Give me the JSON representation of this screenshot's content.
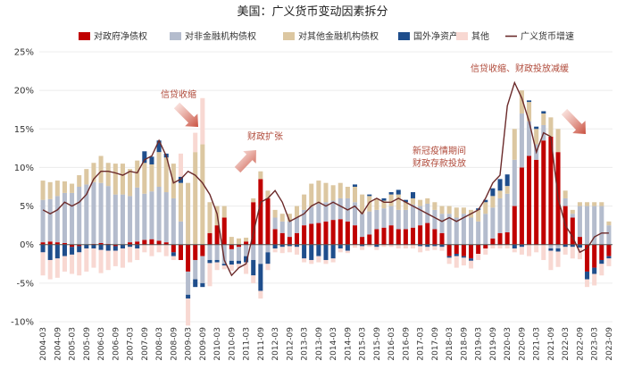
{
  "chart_data": {
    "type": "bar",
    "title": "美国：广义货币变动因素拆分",
    "x": [
      "2004-03",
      "2004-06",
      "2004-09",
      "2004-12",
      "2005-03",
      "2005-06",
      "2005-09",
      "2005-12",
      "2006-03",
      "2006-06",
      "2006-09",
      "2006-12",
      "2007-03",
      "2007-06",
      "2007-09",
      "2007-12",
      "2008-03",
      "2008-06",
      "2008-09",
      "2008-12",
      "2009-03",
      "2009-06",
      "2009-09",
      "2009-12",
      "2010-03",
      "2010-06",
      "2010-09",
      "2010-12",
      "2011-03",
      "2011-06",
      "2011-09",
      "2011-12",
      "2012-03",
      "2012-06",
      "2012-09",
      "2012-12",
      "2013-03",
      "2013-06",
      "2013-09",
      "2013-12",
      "2014-03",
      "2014-06",
      "2014-09",
      "2014-12",
      "2015-03",
      "2015-06",
      "2015-09",
      "2015-12",
      "2016-03",
      "2016-06",
      "2016-09",
      "2016-12",
      "2017-03",
      "2017-06",
      "2017-09",
      "2017-12",
      "2018-03",
      "2018-06",
      "2018-09",
      "2018-12",
      "2019-03",
      "2019-06",
      "2019-09",
      "2019-12",
      "2020-03",
      "2020-06",
      "2020-09",
      "2020-12",
      "2021-03",
      "2021-06",
      "2021-09",
      "2021-12",
      "2022-03",
      "2022-06",
      "2022-09",
      "2022-12",
      "2023-03",
      "2023-06",
      "2023-09"
    ],
    "x_tick_labels": [
      "2004-03",
      "2004-09",
      "2005-03",
      "2005-09",
      "2006-03",
      "2006-09",
      "2007-03",
      "2007-09",
      "2008-03",
      "2008-09",
      "2009-03",
      "2009-09",
      "2010-03",
      "2010-09",
      "2011-03",
      "2011-09",
      "2012-03",
      "2012-09",
      "2013-03",
      "2013-09",
      "2014-03",
      "2014-09",
      "2015-03",
      "2015-09",
      "2016-03",
      "2016-09",
      "2017-03",
      "2017-09",
      "2018-03",
      "2018-09",
      "2019-03",
      "2019-09",
      "2020-03",
      "2020-09",
      "2021-03",
      "2021-09",
      "2022-03",
      "2022-09",
      "2023-03",
      "2023-09"
    ],
    "y_ticks": [
      "-10%",
      "-5%",
      "0%",
      "5%",
      "10%",
      "15%",
      "20%",
      "25%"
    ],
    "ylim": [
      -10,
      25
    ],
    "series": [
      {
        "name": "对政府净债权",
        "type": "bar",
        "color": "#c00000",
        "values": [
          0.3,
          0.4,
          0.3,
          0.2,
          -0.3,
          -0.2,
          0.0,
          0.1,
          0.2,
          0.1,
          -0.2,
          0.0,
          0.3,
          0.4,
          0.6,
          0.7,
          0.5,
          0.3,
          -1.0,
          -2.0,
          -3.5,
          -2.0,
          -1.5,
          1.5,
          2.5,
          3.5,
          -0.6,
          -0.3,
          0.4,
          5.5,
          8.5,
          6.0,
          2.0,
          1.5,
          1.0,
          1.5,
          2.5,
          2.7,
          2.8,
          3.0,
          3.2,
          3.3,
          3.0,
          2.5,
          1.0,
          1.3,
          2.0,
          2.2,
          2.5,
          2.0,
          2.0,
          2.2,
          2.5,
          2.8,
          2.0,
          1.5,
          -1.5,
          -1.2,
          -1.5,
          -1.8,
          -1.2,
          -0.5,
          0.8,
          1.5,
          1.6,
          5.0,
          10.0,
          11.5,
          11.0,
          13.5,
          14.0,
          12.0,
          5.0,
          3.5,
          1.0,
          -3.5,
          -3.0,
          -2.0,
          -1.5
        ]
      },
      {
        "name": "对非金融机构债权",
        "type": "bar",
        "color": "#b4bccd",
        "values": [
          5.5,
          5.5,
          6.0,
          6.5,
          6.7,
          7.5,
          7.8,
          8.0,
          7.8,
          7.5,
          6.5,
          6.5,
          6.0,
          7.0,
          6.0,
          6.2,
          7.0,
          6.5,
          6.0,
          3.0,
          -3.0,
          -2.5,
          -3.5,
          -2.0,
          -2.0,
          -2.5,
          -1.5,
          -1.8,
          -1.5,
          -2.0,
          -2.5,
          -1.0,
          1.5,
          1.5,
          2.0,
          2.0,
          2.0,
          2.2,
          2.5,
          2.5,
          2.5,
          2.7,
          3.0,
          3.0,
          3.0,
          3.0,
          2.5,
          2.5,
          2.5,
          2.5,
          2.5,
          3.0,
          2.5,
          2.5,
          2.5,
          2.5,
          4.0,
          3.5,
          4.0,
          3.5,
          3.0,
          4.0,
          4.0,
          4.5,
          5.0,
          6.0,
          7.0,
          4.5,
          2.0,
          2.0,
          -0.5,
          -0.5,
          1.0,
          0.5,
          4.0,
          5.0,
          5.0,
          5.0,
          2.5
        ]
      },
      {
        "name": "对其他金融机构债权",
        "type": "bar",
        "color": "#dcc7a1",
        "values": [
          2.5,
          2.2,
          2.0,
          1.5,
          1.2,
          1.5,
          2.0,
          2.5,
          3.5,
          3.0,
          4.0,
          4.0,
          3.5,
          3.5,
          4.0,
          3.5,
          4.5,
          4.5,
          4.5,
          5.0,
          8.0,
          12.0,
          13.0,
          4.0,
          2.5,
          1.5,
          1.0,
          0.8,
          0.5,
          0.5,
          1.0,
          1.0,
          1.0,
          1.0,
          1.0,
          1.5,
          2.0,
          3.0,
          3.0,
          2.5,
          2.0,
          2.0,
          1.5,
          2.0,
          2.5,
          2.0,
          1.5,
          1.0,
          1.5,
          2.0,
          1.0,
          0.8,
          0.8,
          0.7,
          1.0,
          1.0,
          1.0,
          1.3,
          0.8,
          1.0,
          1.5,
          1.5,
          1.5,
          1.0,
          1.0,
          4.0,
          3.0,
          2.5,
          2.0,
          1.5,
          2.5,
          3.0,
          1.0,
          0.5,
          0.5,
          0.5,
          0.5,
          0.5,
          0.5
        ]
      },
      {
        "name": "国外净资产",
        "type": "bar",
        "color": "#1f4e8c",
        "values": [
          -1.0,
          -2.0,
          -1.8,
          -1.5,
          -1.0,
          -0.8,
          -0.5,
          -0.5,
          -0.7,
          -0.8,
          -0.6,
          -0.5,
          -0.3,
          -0.5,
          1.5,
          1.0,
          1.5,
          0.5,
          -0.5,
          0.8,
          -0.5,
          -1.0,
          -0.5,
          -0.4,
          -0.3,
          -0.2,
          -0.5,
          -0.4,
          -0.8,
          -2.0,
          -3.5,
          -1.5,
          -0.5,
          -0.3,
          -0.2,
          -0.3,
          -1.8,
          -2.0,
          -1.5,
          -2.0,
          -1.8,
          -0.5,
          -0.8,
          0.3,
          -0.2,
          0.2,
          -0.3,
          0.3,
          0.3,
          0.6,
          0.3,
          0.8,
          -0.2,
          -0.3,
          -0.2,
          -0.3,
          -0.2,
          -0.3,
          -0.2,
          -0.3,
          0.2,
          0.3,
          1.0,
          1.5,
          1.5,
          -0.5,
          -0.3,
          0.2,
          0.3,
          0.3,
          -0.3,
          -0.4,
          -0.3,
          -0.3,
          -0.4,
          -1.0,
          -0.8,
          -0.5,
          -0.3
        ]
      },
      {
        "name": "其他",
        "type": "bar",
        "color": "#f8d8d2",
        "values": [
          -3.0,
          -2.5,
          -2.5,
          -2.0,
          -2.5,
          -3.0,
          -3.0,
          -2.5,
          -3.0,
          -2.5,
          -2.0,
          -2.5,
          -2.0,
          -1.5,
          -1.0,
          -1.5,
          -1.0,
          -1.5,
          -0.5,
          3.0,
          -3.5,
          2.5,
          6.0,
          -3.0,
          -1.0,
          -0.5,
          -0.8,
          -0.5,
          -1.5,
          -1.0,
          -1.0,
          -0.8,
          -0.5,
          -0.8,
          -0.8,
          -1.0,
          -0.5,
          -0.5,
          -0.8,
          -0.5,
          -0.5,
          -0.5,
          -0.3,
          -0.4,
          -0.5,
          -0.3,
          -0.4,
          -0.3,
          -0.3,
          -0.5,
          -0.5,
          -0.5,
          -0.8,
          -0.5,
          -0.5,
          -0.5,
          -0.8,
          -1.5,
          -1.0,
          -1.0,
          -0.8,
          -0.8,
          -0.5,
          -0.5,
          -0.5,
          -0.5,
          -1.0,
          -1.5,
          -1.0,
          -2.0,
          -2.5,
          -2.0,
          -1.0,
          -1.5,
          -1.5,
          -1.0,
          -1.5,
          -1.5,
          -1.0
        ]
      },
      {
        "name": "广义货币增速",
        "type": "line",
        "color": "#6b2a2a",
        "values": [
          4.5,
          4.0,
          4.5,
          5.5,
          5.0,
          5.5,
          6.5,
          8.5,
          9.5,
          9.5,
          9.3,
          9.0,
          9.5,
          9.3,
          11.0,
          11.5,
          13.5,
          11.5,
          8.0,
          8.5,
          9.5,
          9.0,
          8.0,
          6.5,
          4.0,
          -2.0,
          -4.0,
          -3.0,
          -2.5,
          1.5,
          5.5,
          6.0,
          7.0,
          5.5,
          3.0,
          3.5,
          4.0,
          5.0,
          5.5,
          5.0,
          5.5,
          5.0,
          4.5,
          5.0,
          4.0,
          5.5,
          6.0,
          5.5,
          5.5,
          6.0,
          5.5,
          5.0,
          4.5,
          4.0,
          3.5,
          3.0,
          3.5,
          3.0,
          3.5,
          4.0,
          4.5,
          6.0,
          8.0,
          9.0,
          18.0,
          21.0,
          19.0,
          16.0,
          12.0,
          14.5,
          14.0,
          6.0,
          2.5,
          1.0,
          -1.0,
          -0.5,
          1.0,
          1.5,
          1.5
        ]
      }
    ],
    "annotations": [
      {
        "text": "信贷收缩"
      },
      {
        "text": "财政扩张"
      },
      {
        "text": "新冠疫情期间"
      },
      {
        "text": "财政存款投放"
      },
      {
        "text": "信贷收缩、财政投放减缓"
      }
    ]
  }
}
